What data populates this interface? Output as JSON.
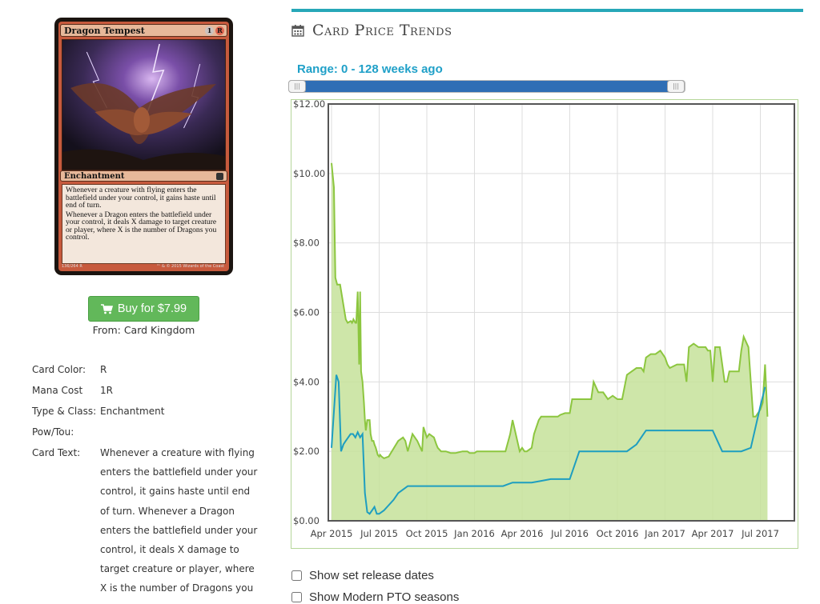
{
  "card": {
    "name": "Dragon Tempest",
    "mana_symbols": [
      "1",
      "R"
    ],
    "type_line": "Enchantment",
    "rules_text": [
      "Whenever a creature with flying enters the battlefield under your control, it gains haste until end of turn.",
      "Whenever a Dragon enters the battlefield under your control, it deals X damage to target creature or player, where X is the number of Dragons you control."
    ],
    "collector_number": "136/264 R",
    "copyright": "™ & © 2015 Wizards of the Coast"
  },
  "buy": {
    "label": "Buy for $7.99",
    "icon": "shopping-cart-icon",
    "from": "From: Card Kingdom"
  },
  "details": {
    "color_label": "Card Color:",
    "color_value": "R",
    "mana_label": "Mana Cost",
    "mana_value": "1R",
    "type_label": "Type & Class:",
    "type_value": "Enchantment",
    "powtou_label": "Pow/Tou:",
    "powtou_value": "",
    "text_label": "Card Text:",
    "text_value": "Whenever a creature with flying enters the battlefield under your control, it gains haste until end of turn. Whenever a Dragon enters the battlefield under your control, it deals X damage to target creature or player, where X is the number of Dragons you"
  },
  "section": {
    "title": "Card Price Trends",
    "icon": "calendar-icon"
  },
  "range": {
    "label": "Range: 0 - 128 weeks ago",
    "min_weeks": 0,
    "max_weeks": 128
  },
  "chart_data": {
    "type": "area",
    "title": "",
    "xlabel": "",
    "ylabel": "",
    "ylim": [
      0,
      12
    ],
    "x_ticks": [
      "Apr 2015",
      "Jul 2015",
      "Oct 2015",
      "Jan 2016",
      "Apr 2016",
      "Jul 2016",
      "Oct 2016",
      "Jan 2017",
      "Apr 2017",
      "Jul 2017"
    ],
    "y_ticks": [
      "$0.00",
      "$2.00",
      "$4.00",
      "$6.00",
      "$8.00",
      "$10.00",
      "$12.00"
    ],
    "grid": true,
    "colors": {
      "series_1": "#8cc63f",
      "series_1_fill": "#c6e29a",
      "series_2": "#1e9ec0"
    },
    "series": [
      {
        "t": [
          0,
          0.05,
          0.08,
          0.12,
          0.18,
          0.3,
          0.34,
          0.4,
          0.41,
          0.43,
          0.45,
          0.46,
          0.5,
          0.52,
          0.55,
          0.58,
          0.6,
          0.62,
          0.65,
          0.68,
          0.7,
          0.72,
          0.75,
          0.8,
          0.82,
          0.85,
          0.88,
          0.9,
          0.93,
          0.95,
          0.97,
          1.0,
          1.02,
          1.05,
          1.1,
          1.2,
          1.4,
          1.5,
          1.55,
          1.6,
          1.7,
          1.8,
          1.9,
          1.93,
          2.0,
          2.05,
          2.15,
          2.2,
          2.23,
          2.3,
          2.4,
          2.5,
          2.6,
          2.75,
          2.85,
          2.9,
          3.0,
          3.05,
          3.1,
          3.2,
          3.3,
          3.4,
          3.5,
          3.55,
          3.6,
          3.65,
          3.75,
          3.8,
          3.95,
          4.0,
          4.05,
          4.1,
          4.2,
          4.25,
          4.35,
          4.4,
          4.55,
          4.6,
          4.75,
          4.8,
          4.9,
          5.0,
          5.05,
          5.15,
          5.3,
          5.45,
          5.5,
          5.6,
          5.7,
          5.8,
          5.9,
          6.0,
          6.1,
          6.2,
          6.3,
          6.4,
          6.5,
          6.55,
          6.6,
          6.7,
          6.8,
          6.9,
          7.0,
          7.05,
          7.1,
          7.25,
          7.3,
          7.4,
          7.45,
          7.5,
          7.6,
          7.7,
          7.8,
          7.85,
          7.9,
          7.95,
          8.0,
          8.05,
          8.1,
          8.15,
          8.25,
          8.3,
          8.35,
          8.4,
          8.45,
          8.5,
          8.55,
          8.6,
          8.65,
          8.75,
          8.85,
          8.9,
          8.95,
          9.0,
          9.05,
          9.1,
          9.15
        ],
        "name": "",
        "values": [
          10.3,
          9.6,
          7.0,
          6.8,
          6.8,
          5.8,
          5.7,
          5.75,
          5.75,
          5.7,
          5.75,
          5.8,
          5.7,
          5.7,
          6.6,
          4.5,
          6.6,
          4.3,
          4.0,
          3.4,
          2.9,
          2.6,
          2.9,
          2.9,
          2.5,
          2.3,
          2.3,
          2.2,
          2.1,
          2.0,
          1.9,
          1.85,
          1.9,
          1.85,
          1.8,
          1.85,
          2.3,
          2.4,
          2.3,
          2.0,
          2.5,
          2.3,
          2.0,
          2.7,
          2.4,
          2.5,
          2.4,
          2.2,
          2.1,
          2.0,
          2.0,
          1.95,
          1.95,
          2.0,
          2.0,
          1.95,
          1.95,
          2.0,
          2.0,
          2.0,
          2.0,
          2.0,
          2.0,
          2.0,
          2.0,
          2.0,
          2.5,
          2.9,
          2.0,
          2.1,
          2.0,
          2.0,
          2.1,
          2.5,
          2.9,
          3.0,
          3.0,
          3.0,
          3.0,
          3.05,
          3.1,
          3.1,
          3.5,
          3.5,
          3.5,
          3.5,
          4.0,
          3.7,
          3.7,
          3.5,
          3.6,
          3.5,
          3.5,
          4.2,
          4.3,
          4.4,
          4.4,
          4.3,
          4.7,
          4.8,
          4.8,
          4.9,
          4.7,
          4.5,
          4.4,
          4.5,
          4.5,
          4.5,
          4.0,
          5.0,
          5.1,
          5.0,
          5.0,
          5.0,
          4.9,
          4.9,
          4.0,
          5.0,
          5.0,
          5.0,
          4.0,
          4.0,
          4.3,
          4.3,
          4.3,
          4.3,
          4.3,
          4.9,
          5.3,
          5.0,
          3.0,
          3.0,
          3.1,
          3.2,
          3.4,
          4.5,
          3.0
        ]
      },
      {
        "name": "",
        "t": [
          0,
          0.1,
          0.15,
          0.2,
          0.25,
          0.3,
          0.35,
          0.4,
          0.45,
          0.5,
          0.55,
          0.6,
          0.65,
          0.7,
          0.75,
          0.8,
          0.85,
          0.9,
          0.95,
          1.0,
          1.1,
          1.2,
          1.3,
          1.4,
          1.5,
          1.6,
          1.7,
          1.8,
          1.9,
          2.0,
          2.2,
          2.4,
          2.6,
          2.8,
          3.0,
          3.2,
          3.4,
          3.6,
          3.8,
          4.0,
          4.2,
          4.4,
          4.6,
          4.8,
          5.0,
          5.2,
          5.4,
          5.6,
          5.8,
          6.0,
          6.2,
          6.4,
          6.6,
          6.8,
          7.0,
          7.2,
          7.4,
          7.6,
          7.8,
          8.0,
          8.2,
          8.4,
          8.6,
          8.8,
          9.0,
          9.1
        ],
        "values": [
          2.1,
          4.2,
          4.0,
          2.0,
          2.2,
          2.3,
          2.4,
          2.5,
          2.5,
          2.4,
          2.55,
          2.4,
          2.5,
          0.8,
          0.25,
          0.2,
          0.3,
          0.4,
          0.2,
          0.2,
          0.3,
          0.45,
          0.6,
          0.8,
          0.9,
          1.0,
          1.0,
          1.0,
          1.0,
          1.0,
          1.0,
          1.0,
          1.0,
          1.0,
          1.0,
          1.0,
          1.0,
          1.0,
          1.1,
          1.1,
          1.1,
          1.15,
          1.2,
          1.2,
          1.2,
          2.0,
          2.0,
          2.0,
          2.0,
          2.0,
          2.0,
          2.2,
          2.6,
          2.6,
          2.6,
          2.6,
          2.6,
          2.6,
          2.6,
          2.6,
          2.0,
          2.0,
          2.0,
          2.1,
          3.3,
          3.85
        ]
      }
    ]
  },
  "options": {
    "release_dates_label": "Show set release dates",
    "pto_label": "Show Modern PTO seasons"
  }
}
